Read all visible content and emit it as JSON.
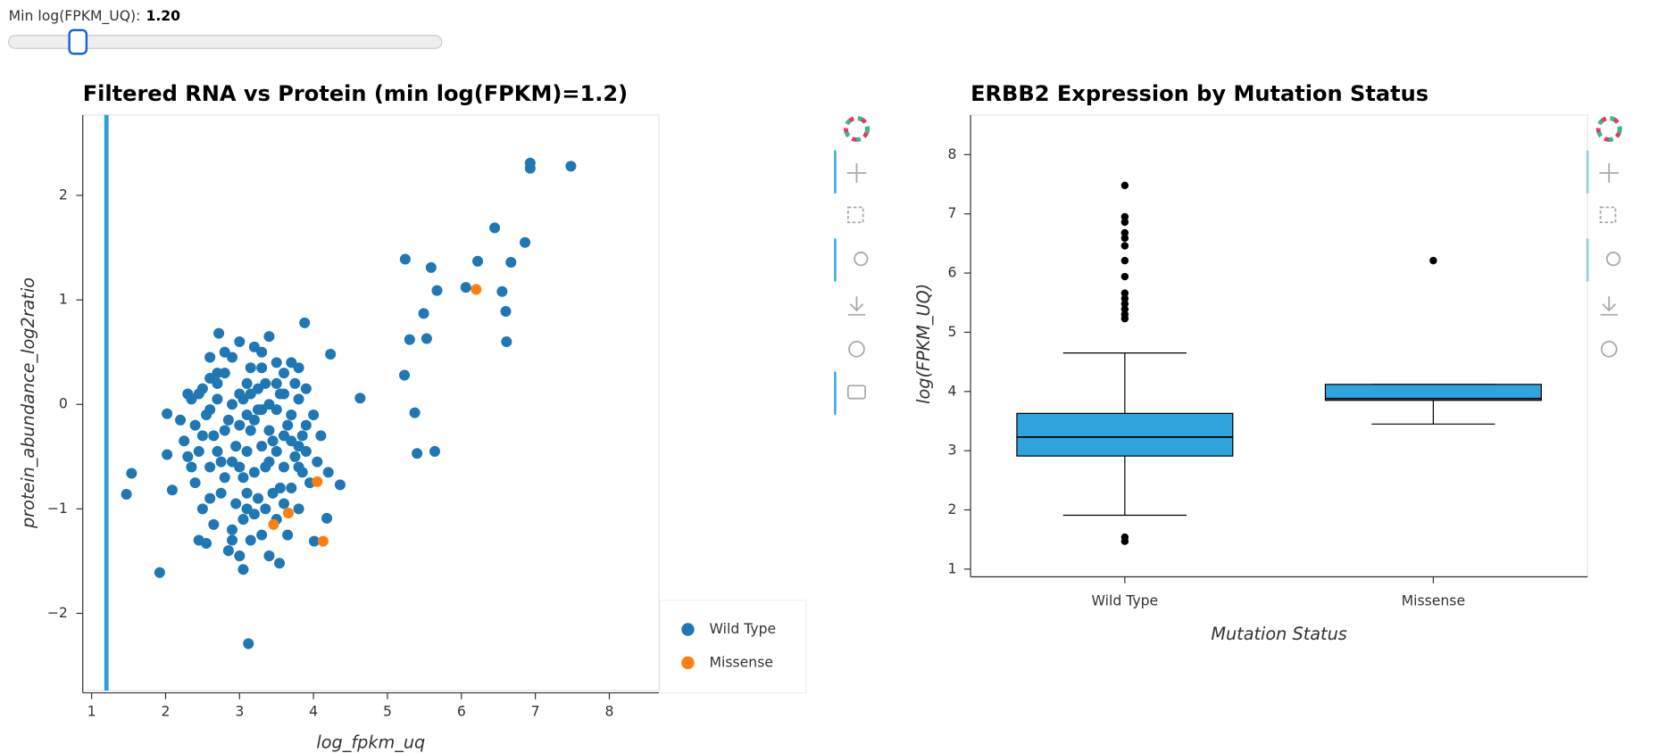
{
  "slider": {
    "label": "Min log(FPKM_UQ):",
    "value": 1.2,
    "value_label": "1.20",
    "range": [
      0,
      7.5
    ]
  },
  "chart_data": [
    {
      "type": "scatter",
      "title": "Filtered RNA vs Protein (min log(FPKM)=1.2)",
      "x_label": "log_fpkm_uq",
      "y_label": "protein_abundance_log2ratio",
      "xlim": [
        0.88,
        8.67
      ],
      "ylim": [
        -2.74,
        2.77
      ],
      "xticks": [
        1,
        2,
        3,
        4,
        5,
        6,
        7,
        8
      ],
      "yticks": [
        {
          "value": -2,
          "label": "−2"
        },
        {
          "value": -1,
          "label": "−1"
        },
        0,
        1,
        2
      ],
      "vline": 1.2,
      "vline_color": "#2b9fd9",
      "legend": "bottom-right",
      "grid": false,
      "series": [
        {
          "name": "Wild Type",
          "color": "#1f77b4",
          "x": [
            1.47,
            1.54,
            1.92,
            2.02,
            2.09,
            2.02,
            3.12,
            2.72,
            3.88,
            4.63,
            4.23,
            4.36,
            4.18,
            4.01,
            3.54,
            3.05,
            5.23,
            5.24,
            5.37,
            5.4,
            5.3,
            5.49,
            5.53,
            5.59,
            5.67,
            5.64,
            6.06,
            6.22,
            6.45,
            6.55,
            6.6,
            6.61,
            6.67,
            6.86,
            6.93,
            6.93,
            7.48,
            2.3,
            2.4,
            2.25,
            2.35,
            2.45,
            2.5,
            2.55,
            2.6,
            2.65,
            2.7,
            2.75,
            2.8,
            2.85,
            2.9,
            2.95,
            3.0,
            3.05,
            3.1,
            3.15,
            3.2,
            3.25,
            3.3,
            3.35,
            3.4,
            3.45,
            3.5,
            3.55,
            3.6,
            3.65,
            3.7,
            3.75,
            3.8,
            3.85,
            3.9,
            3.95,
            4.0,
            2.5,
            2.55,
            2.65,
            2.75,
            2.85,
            2.9,
            2.95,
            3.0,
            3.05,
            3.1,
            3.15,
            3.2,
            3.25,
            3.3,
            3.35,
            3.45,
            3.5,
            3.6,
            3.65,
            3.7,
            3.8,
            3.85,
            4.05,
            2.35,
            2.45,
            2.6,
            2.7,
            2.8,
            2.9,
            3.0,
            3.05,
            3.1,
            3.15,
            3.2,
            3.25,
            3.3,
            3.35,
            3.4,
            3.5,
            3.55,
            3.6,
            3.7,
            3.75,
            3.8,
            3.9,
            2.2,
            2.3,
            2.4,
            2.5,
            2.6,
            2.7,
            2.8,
            2.9,
            3.0,
            3.1,
            3.2,
            3.3,
            3.4,
            3.5,
            3.6,
            3.7,
            3.8,
            3.9,
            4.1,
            4.2,
            2.6,
            2.8,
            3.0,
            3.3,
            3.4,
            3.5,
            3.6,
            3.8,
            2.7,
            3.15,
            2.6,
            3.4,
            2.9,
            3.1,
            2.45
          ],
          "y": [
            -0.86,
            -0.66,
            -1.61,
            -0.09,
            -0.82,
            -0.48,
            -2.29,
            0.68,
            0.78,
            0.06,
            0.48,
            -0.77,
            -1.09,
            -1.31,
            -1.52,
            -1.58,
            0.28,
            1.39,
            -0.08,
            -0.47,
            0.62,
            0.87,
            0.63,
            1.31,
            1.09,
            -0.45,
            1.12,
            1.37,
            1.69,
            1.08,
            0.89,
            0.6,
            1.36,
            1.55,
            2.31,
            2.26,
            2.28,
            0.1,
            -0.2,
            -0.35,
            -0.6,
            -0.45,
            0.15,
            -0.1,
            0.25,
            -0.3,
            0.05,
            -0.55,
            0.3,
            -0.15,
            0.45,
            -0.4,
            0.1,
            -0.7,
            0.2,
            -0.25,
            0.55,
            -0.05,
            0.35,
            -0.6,
            0.0,
            -0.35,
            0.2,
            -0.8,
            0.1,
            -0.2,
            0.4,
            -0.5,
            0.05,
            -0.3,
            0.15,
            -0.75,
            -0.1,
            -1.0,
            -1.33,
            -1.15,
            -0.85,
            -1.4,
            -1.2,
            -0.95,
            -1.45,
            -1.1,
            -0.85,
            -1.3,
            -1.05,
            -0.9,
            -1.25,
            -1.0,
            -0.85,
            -1.1,
            -0.95,
            -1.25,
            -0.8,
            -1.0,
            -0.65,
            -0.55,
            0.05,
            0.1,
            -0.05,
            0.2,
            -0.25,
            0.0,
            -0.2,
            0.05,
            -0.1,
            0.1,
            -0.15,
            0.15,
            -0.05,
            0.2,
            -0.25,
            -0.05,
            0.1,
            -0.3,
            -0.1,
            0.2,
            -0.4,
            -0.2,
            -0.15,
            -0.5,
            -0.75,
            -0.3,
            -0.6,
            -0.45,
            -0.7,
            -0.55,
            -0.6,
            -0.45,
            -0.65,
            -0.4,
            -0.55,
            -0.45,
            -0.6,
            -0.35,
            -0.6,
            -0.45,
            -0.3,
            -0.65,
            0.45,
            0.5,
            0.6,
            0.5,
            0.65,
            0.4,
            0.3,
            0.35,
            0.3,
            0.35,
            -0.9,
            -1.45,
            -1.3,
            -1.0,
            -1.3
          ]
        },
        {
          "name": "Missense",
          "color": "#ff7f0e",
          "x": [
            6.2,
            4.05,
            4.13,
            3.66,
            3.46
          ],
          "y": [
            1.1,
            -0.74,
            -1.31,
            -1.04,
            -1.15
          ]
        }
      ]
    },
    {
      "type": "box",
      "title": "ERBB2 Expression by Mutation Status",
      "x_label": "Mutation Status",
      "y_label": "log(FPKM_UQ)",
      "categories": [
        "Wild Type",
        "Missense"
      ],
      "ylim": [
        0.87,
        8.67
      ],
      "yticks": [
        1,
        2,
        3,
        4,
        5,
        6,
        7,
        8
      ],
      "color": "#2ea3dc",
      "whisker_low": [
        1.91,
        3.45
      ],
      "q1": [
        2.91,
        3.85
      ],
      "median": [
        3.23,
        3.88
      ],
      "q3": [
        3.63,
        4.12
      ],
      "whisker_high": [
        4.65,
        4.12
      ],
      "outliers": [
        [
          7.48,
          6.95,
          6.86,
          6.68,
          6.59,
          6.46,
          6.21,
          5.94,
          5.66,
          5.57,
          5.48,
          5.39,
          5.3,
          5.23,
          1.54,
          1.47
        ],
        [
          6.21
        ]
      ]
    }
  ]
}
